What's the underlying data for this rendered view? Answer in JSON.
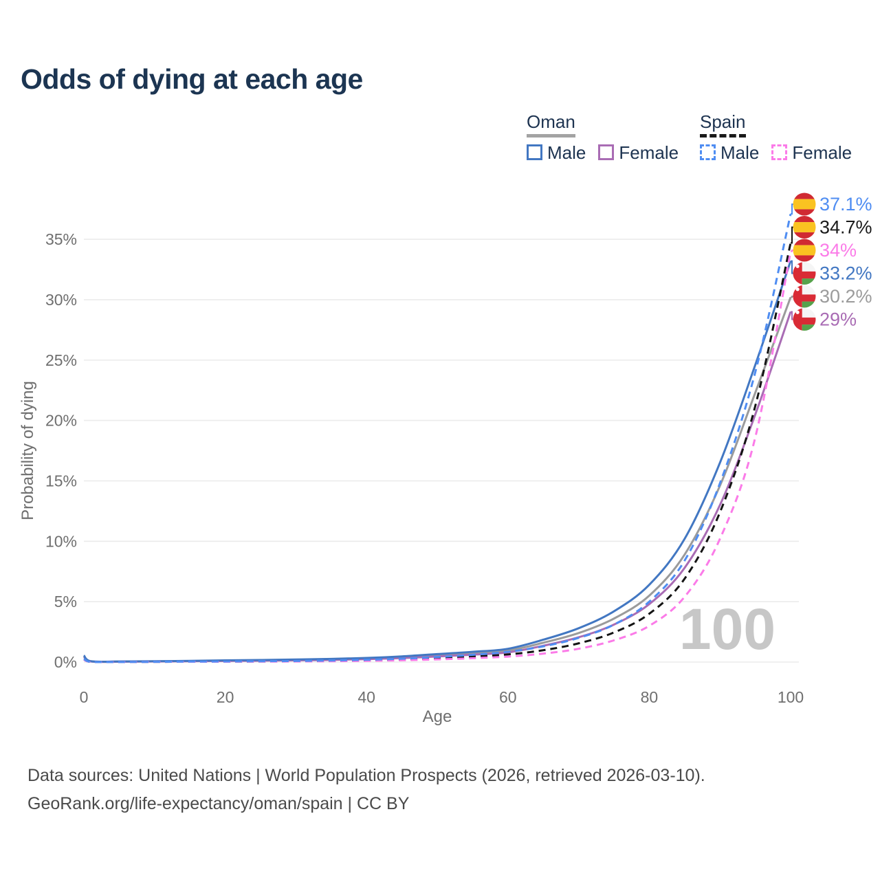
{
  "title": "Odds of dying at each age",
  "legend": {
    "groups": [
      {
        "id": "oman",
        "label": "Oman",
        "line_style": "solid",
        "underline_color": "#a3a3a3",
        "items": [
          {
            "id": "oman-male",
            "label": "Male",
            "color": "#4277c2",
            "dashed": false
          },
          {
            "id": "oman-female",
            "label": "Female",
            "color": "#a96cb4",
            "dashed": false
          }
        ]
      },
      {
        "id": "spain",
        "label": "Spain",
        "line_style": "dashed",
        "underline_color": "#1a1a1a",
        "items": [
          {
            "id": "spain-male",
            "label": "Male",
            "color": "#4f8df2",
            "dashed": true
          },
          {
            "id": "spain-female",
            "label": "Female",
            "color": "#fb7be8",
            "dashed": true
          }
        ]
      }
    ]
  },
  "chart_data": {
    "type": "line",
    "title": "Odds of dying at each age",
    "xlabel": "Age",
    "ylabel": "Probability of dying",
    "xlim": [
      0,
      100
    ],
    "ylim": [
      0,
      38.5
    ],
    "grid": "horizontal",
    "legend_position": "top-right",
    "watermark": "100",
    "x_ticks": [
      0,
      20,
      40,
      60,
      80,
      100
    ],
    "x_tick_labels": [
      "0",
      "20",
      "40",
      "60",
      "80",
      "100"
    ],
    "y_ticks": [
      0,
      5,
      10,
      15,
      20,
      25,
      30,
      35
    ],
    "y_tick_labels": [
      "0%",
      "5%",
      "10%",
      "15%",
      "20%",
      "25%",
      "30%",
      "35%"
    ],
    "ages": [
      0,
      1,
      5,
      10,
      15,
      20,
      25,
      30,
      35,
      40,
      45,
      50,
      55,
      60,
      65,
      70,
      75,
      80,
      85,
      90,
      95,
      100
    ],
    "series": [
      {
        "id": "oman-total",
        "name": "Oman",
        "color": "#9b9b9b",
        "dash": "solid",
        "flag": "oman",
        "values": [
          0.48,
          0.06,
          0.04,
          0.06,
          0.08,
          0.11,
          0.14,
          0.17,
          0.22,
          0.29,
          0.4,
          0.56,
          0.72,
          0.95,
          1.6,
          2.4,
          3.6,
          5.5,
          8.9,
          14.6,
          22.3,
          30.2
        ],
        "end_value": 30.2,
        "end_label": "30.2%",
        "label_color": "#9b9b9b"
      },
      {
        "id": "oman-female",
        "name": "Oman Female",
        "color": "#a96cb4",
        "dash": "solid",
        "flag": "oman",
        "values": [
          0.42,
          0.05,
          0.03,
          0.05,
          0.07,
          0.09,
          0.11,
          0.14,
          0.18,
          0.24,
          0.33,
          0.46,
          0.61,
          0.8,
          1.35,
          2.05,
          3.1,
          4.8,
          7.8,
          13.0,
          20.5,
          29.0
        ],
        "end_value": 29.0,
        "end_label": "29%",
        "label_color": "#a96cb4"
      },
      {
        "id": "oman-male",
        "name": "Oman Male",
        "color": "#4277c2",
        "dash": "solid",
        "flag": "oman",
        "values": [
          0.55,
          0.07,
          0.05,
          0.07,
          0.1,
          0.14,
          0.17,
          0.21,
          0.26,
          0.34,
          0.47,
          0.66,
          0.85,
          1.1,
          1.85,
          2.8,
          4.2,
          6.4,
          10.2,
          16.5,
          24.6,
          33.2
        ],
        "end_value": 33.2,
        "end_label": "33.2%",
        "label_color": "#4277c2"
      },
      {
        "id": "spain-total",
        "name": "Spain",
        "color": "#141414",
        "dash": "dashed",
        "flag": "spain",
        "values": [
          0.23,
          0.02,
          0.01,
          0.02,
          0.03,
          0.04,
          0.05,
          0.07,
          0.1,
          0.14,
          0.21,
          0.31,
          0.45,
          0.63,
          0.98,
          1.55,
          2.45,
          4.0,
          6.9,
          12.4,
          21.2,
          34.7
        ],
        "end_value": 34.7,
        "end_label": "34.7%",
        "label_color": "#1a1a1a"
      },
      {
        "id": "spain-female",
        "name": "Spain Female",
        "color": "#fb7be8",
        "dash": "dashed",
        "flag": "spain",
        "values": [
          0.2,
          0.02,
          0.01,
          0.02,
          0.03,
          0.03,
          0.04,
          0.05,
          0.07,
          0.1,
          0.15,
          0.22,
          0.32,
          0.45,
          0.7,
          1.1,
          1.8,
          3.0,
          5.4,
          10.2,
          18.6,
          34.0
        ],
        "end_value": 34.0,
        "end_label": "34%",
        "label_color": "#fb7be8"
      },
      {
        "id": "spain-male",
        "name": "Spain Male",
        "color": "#4f8df2",
        "dash": "dashed",
        "flag": "spain",
        "values": [
          0.26,
          0.02,
          0.01,
          0.02,
          0.04,
          0.05,
          0.07,
          0.09,
          0.13,
          0.19,
          0.28,
          0.42,
          0.6,
          0.85,
          1.3,
          2.0,
          3.1,
          5.0,
          8.4,
          14.8,
          24.0,
          37.1
        ],
        "end_value": 37.1,
        "end_label": "37.1%",
        "label_color": "#4f8df2"
      }
    ],
    "end_labels_order": [
      "spain-male",
      "spain-total",
      "spain-female",
      "oman-male",
      "oman-total",
      "oman-female"
    ],
    "flag_colors": {
      "spain_red": "#d02a32",
      "spain_yellow": "#fac321",
      "oman_red": "#d92b35",
      "oman_green": "#56a24b",
      "oman_white": "#f5f5f5"
    },
    "gridline_color": "#ebebeb",
    "tick_color": "#6f6f6f",
    "watermark_color": "#c7c7c7"
  },
  "footer": {
    "line1": "Data sources: United Nations | World Population Prospects (2026, retrieved 2026-03-10).",
    "line2": "GeoRank.org/life-expectancy/oman/spain | CC BY"
  }
}
